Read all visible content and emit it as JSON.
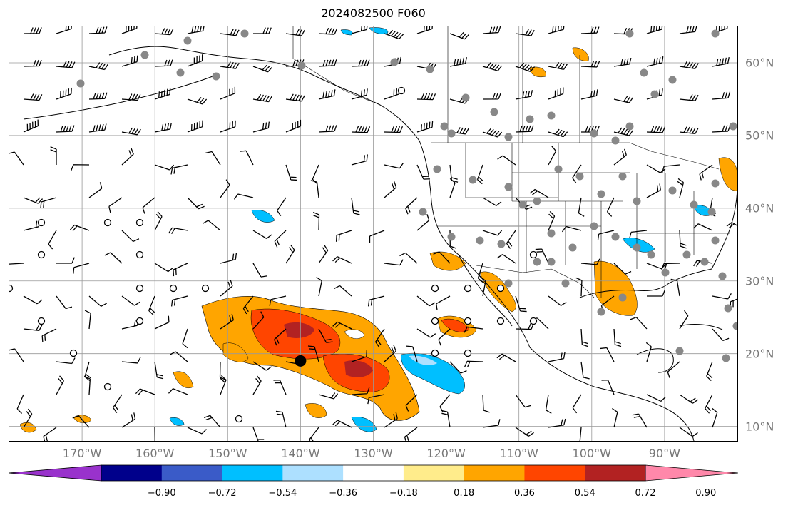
{
  "title": "2024082500 F060",
  "map": {
    "lon_range": [
      -180,
      -80
    ],
    "lat_range": [
      8,
      65
    ],
    "lon_ticks": [
      {
        "lon": -170,
        "label": "170°W"
      },
      {
        "lon": -160,
        "label": "160°W"
      },
      {
        "lon": -150,
        "label": "150°W"
      },
      {
        "lon": -140,
        "label": "140°W"
      },
      {
        "lon": -130,
        "label": "130°W"
      },
      {
        "lon": -120,
        "label": "120°W"
      },
      {
        "lon": -110,
        "label": "110°W"
      },
      {
        "lon": -100,
        "label": "100°W"
      },
      {
        "lon": -90,
        "label": "90°W"
      }
    ],
    "lat_ticks": [
      {
        "lat": 60,
        "label": "60°N"
      },
      {
        "lat": 50,
        "label": "50°N"
      },
      {
        "lat": 40,
        "label": "40°N"
      },
      {
        "lat": 30,
        "label": "30°N"
      },
      {
        "lat": 20,
        "label": "20°N"
      },
      {
        "lat": 10,
        "label": "10°N"
      }
    ],
    "grid": true,
    "center_marker": {
      "lon": -140,
      "lat": 19
    }
  },
  "colorbar": {
    "ticks": [
      "−0.90",
      "−0.72",
      "−0.54",
      "−0.36",
      "−0.18",
      "0.18",
      "0.36",
      "0.54",
      "0.72",
      "0.90"
    ],
    "colors": [
      "#9932CC",
      "#00008B",
      "#3A5BC8",
      "#00BFFF",
      "#ADE0FF",
      "#FFFFFF",
      "#FFEC8B",
      "#FFA500",
      "#FF4500",
      "#B22222",
      "#FF88AA"
    ]
  }
}
